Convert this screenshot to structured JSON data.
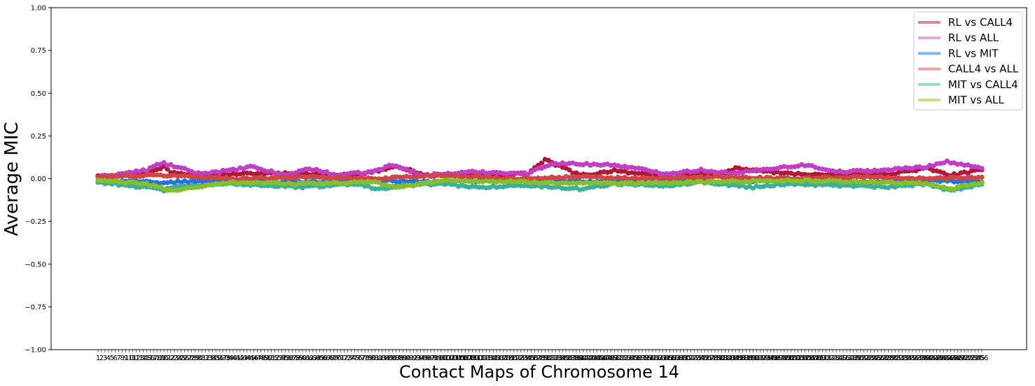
{
  "chart_data": {
    "type": "line",
    "xlabel": "Contact Maps of Chromosome 14",
    "ylabel": "Average MIC",
    "ylim": [
      -1.0,
      1.0
    ],
    "yticks": [
      "1.00",
      "0.75",
      "0.50",
      "0.25",
      "0.00",
      "−0.25",
      "−0.50",
      "−0.75",
      "−1.00"
    ],
    "ytick_values": [
      1.0,
      0.75,
      0.5,
      0.25,
      0.0,
      -0.25,
      -0.5,
      -0.75,
      -1.0
    ],
    "x_range": [
      1,
      256
    ],
    "legend_position": "top-right",
    "grid": false,
    "markers": true,
    "series": [
      {
        "name": "RL vs CALL4",
        "line_color": "#d9899e",
        "marker_color": "#b0183a",
        "anchors_x": [
          1,
          10,
          18,
          20,
          22,
          30,
          45,
          60,
          75,
          80,
          88,
          95,
          110,
          125,
          130,
          140,
          145,
          150,
          160,
          168,
          180,
          185,
          200,
          215,
          230,
          240,
          247,
          256
        ],
        "anchors_y": [
          0.02,
          0.02,
          0.05,
          0.07,
          0.04,
          0.02,
          0.03,
          0.03,
          0.02,
          0.04,
          0.07,
          0.02,
          0.02,
          0.03,
          0.11,
          0.02,
          0.03,
          0.05,
          0.02,
          0.03,
          0.02,
          0.06,
          0.03,
          0.02,
          0.03,
          0.06,
          0.02,
          0.05
        ]
      },
      {
        "name": "RL vs ALL",
        "line_color": "#e1a6e0",
        "marker_color": "#c13fc3",
        "anchors_x": [
          1,
          8,
          15,
          18,
          20,
          30,
          40,
          45,
          55,
          62,
          70,
          80,
          86,
          95,
          110,
          125,
          132,
          150,
          165,
          175,
          185,
          195,
          205,
          215,
          228,
          240,
          246,
          256
        ],
        "anchors_y": [
          0.01,
          0.03,
          0.05,
          0.08,
          0.09,
          0.03,
          0.05,
          0.07,
          0.02,
          0.06,
          0.02,
          0.04,
          0.08,
          0.02,
          0.04,
          0.03,
          0.09,
          0.08,
          0.03,
          0.05,
          0.03,
          0.06,
          0.08,
          0.04,
          0.05,
          0.07,
          0.1,
          0.06
        ]
      },
      {
        "name": "RL vs MIT",
        "line_color": "#7cb6f2",
        "marker_color": "#2373e2",
        "anchors_x": [
          1,
          10,
          20,
          22,
          40,
          60,
          80,
          100,
          120,
          140,
          160,
          180,
          200,
          220,
          240,
          256
        ],
        "anchors_y": [
          -0.02,
          -0.01,
          -0.03,
          -0.02,
          -0.01,
          -0.02,
          -0.01,
          -0.02,
          -0.01,
          -0.02,
          -0.01,
          -0.02,
          -0.01,
          -0.02,
          -0.01,
          -0.02
        ]
      },
      {
        "name": "CALL4 vs ALL",
        "line_color": "#eaa3a3",
        "marker_color": "#d24545",
        "anchors_x": [
          1,
          20,
          40,
          60,
          80,
          100,
          120,
          140,
          160,
          180,
          200,
          220,
          240,
          256
        ],
        "anchors_y": [
          0.01,
          0.02,
          0.0,
          0.01,
          0.0,
          0.02,
          0.0,
          0.01,
          0.0,
          0.01,
          0.0,
          0.01,
          0.0,
          0.01
        ]
      },
      {
        "name": "MIT vs CALL4",
        "line_color": "#9bdac8",
        "marker_color": "#3ab09a",
        "anchors_x": [
          1,
          10,
          18,
          20,
          22,
          40,
          60,
          75,
          82,
          88,
          100,
          110,
          125,
          140,
          150,
          165,
          175,
          190,
          200,
          215,
          230,
          240,
          247,
          256
        ],
        "anchors_y": [
          -0.02,
          -0.04,
          -0.06,
          -0.07,
          -0.05,
          -0.03,
          -0.05,
          -0.03,
          -0.06,
          -0.04,
          -0.03,
          -0.05,
          -0.04,
          -0.06,
          -0.03,
          -0.04,
          -0.02,
          -0.05,
          -0.03,
          -0.04,
          -0.05,
          -0.03,
          -0.07,
          -0.03
        ]
      },
      {
        "name": "MIT vs ALL",
        "line_color": "#d5e07a",
        "marker_color": "#86bf2a",
        "anchors_x": [
          1,
          15,
          20,
          22,
          40,
          60,
          80,
          88,
          100,
          125,
          150,
          175,
          200,
          225,
          240,
          247,
          256
        ],
        "anchors_y": [
          -0.01,
          -0.03,
          -0.06,
          -0.07,
          -0.02,
          -0.03,
          -0.02,
          -0.05,
          -0.01,
          -0.02,
          -0.03,
          -0.02,
          -0.01,
          -0.02,
          -0.03,
          -0.06,
          -0.02
        ]
      }
    ]
  }
}
